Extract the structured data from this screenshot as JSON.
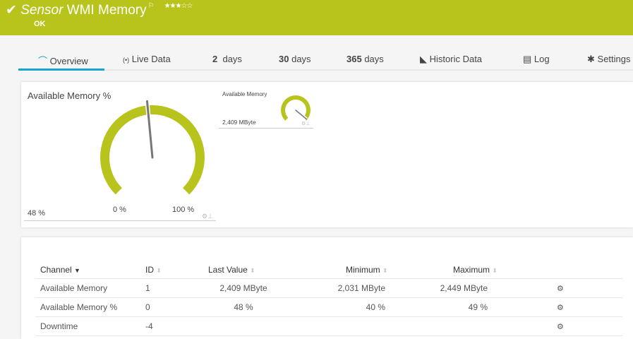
{
  "header": {
    "title_italic": "Sensor",
    "title": "WMI Memory",
    "flag_icon": "flag-icon",
    "stars": "★★★☆☆",
    "rating": 3,
    "status": "OK",
    "color": "#b8c41c"
  },
  "tabs": [
    {
      "icon": "⌒",
      "label": "Overview"
    },
    {
      "icon": "(•)",
      "label": "Live Data"
    },
    {
      "num": "2",
      "label": "days"
    },
    {
      "num": "30",
      "label": "days"
    },
    {
      "num": "365",
      "label": "days"
    },
    {
      "icon": "◣",
      "label": "Historic Data"
    },
    {
      "icon": "▤",
      "label": "Log"
    },
    {
      "icon": "✱",
      "label": "Settings"
    }
  ],
  "gauge_main": {
    "title": "Available Memory %",
    "value_text": "48 %",
    "min_label": "0 %",
    "max_label": "100 %",
    "value": 48,
    "min": 0,
    "max": 100,
    "color": "#b8c41c"
  },
  "gauge_small": {
    "title": "Available Memory",
    "value_text": "2,409 MByte",
    "needle_fraction": 0.98
  },
  "table": {
    "headers": {
      "channel": "Channel",
      "id": "ID",
      "last": "Last Value",
      "min": "Minimum",
      "max": "Maximum"
    },
    "rows": [
      {
        "channel": "Available Memory",
        "id": "1",
        "last": "2,409 MByte",
        "min": "2,031 MByte",
        "max": "2,449 MByte"
      },
      {
        "channel": "Available Memory %",
        "id": "0",
        "last": "48 %",
        "min": "40 %",
        "max": "49 %"
      },
      {
        "channel": "Downtime",
        "id": "-4",
        "last": "",
        "min": "",
        "max": ""
      }
    ]
  }
}
